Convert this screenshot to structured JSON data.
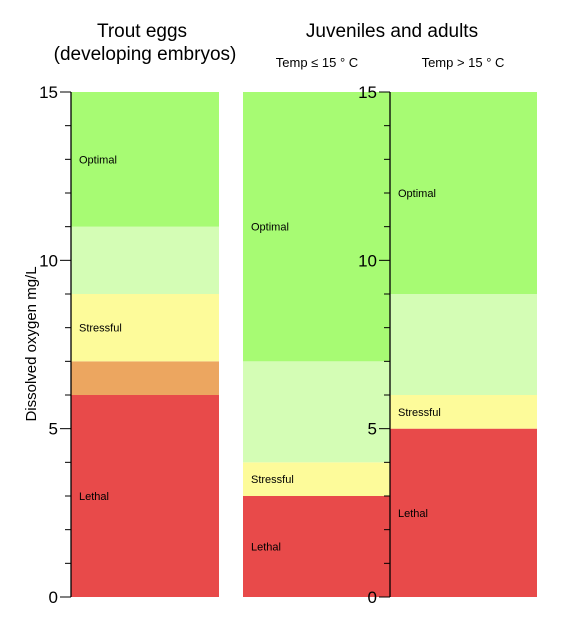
{
  "chart_data": {
    "type": "bar",
    "ylabel": "Dissolved oxygen  mg/L",
    "ylim": [
      0,
      15
    ],
    "yticks": [
      0,
      5,
      10,
      15
    ],
    "group_titles": [
      [
        "Trout eggs",
        "(developing embryos)"
      ],
      [
        "Juveniles and adults"
      ]
    ],
    "columns": [
      {
        "subtitle": "",
        "bands": [
          {
            "from": 0,
            "to": 6,
            "color": "#e84a4a",
            "label": "Lethal"
          },
          {
            "from": 6,
            "to": 7,
            "color": "#eca660",
            "label": ""
          },
          {
            "from": 7,
            "to": 9,
            "color": "#fdfb9a",
            "label": "Stressful"
          },
          {
            "from": 9,
            "to": 11,
            "color": "#d4fdb5",
            "label": ""
          },
          {
            "from": 11,
            "to": 15,
            "color": "#a7fb73",
            "label": "Optimal"
          }
        ]
      },
      {
        "subtitle": "Temp ≤ 15 ° C",
        "bands": [
          {
            "from": 0,
            "to": 3,
            "color": "#e84a4a",
            "label": "Lethal"
          },
          {
            "from": 3,
            "to": 4,
            "color": "#fdfb9a",
            "label": "Stressful"
          },
          {
            "from": 4,
            "to": 7,
            "color": "#d4fdb5",
            "label": ""
          },
          {
            "from": 7,
            "to": 15,
            "color": "#a7fb73",
            "label": "Optimal"
          }
        ]
      },
      {
        "subtitle": "Temp > 15 ° C",
        "bands": [
          {
            "from": 0,
            "to": 5,
            "color": "#e84a4a",
            "label": "Lethal"
          },
          {
            "from": 5,
            "to": 6,
            "color": "#fdfb9a",
            "label": "Stressful"
          },
          {
            "from": 6,
            "to": 9,
            "color": "#d4fdb5",
            "label": ""
          },
          {
            "from": 9,
            "to": 15,
            "color": "#a7fb73",
            "label": "Optimal"
          }
        ]
      }
    ]
  }
}
